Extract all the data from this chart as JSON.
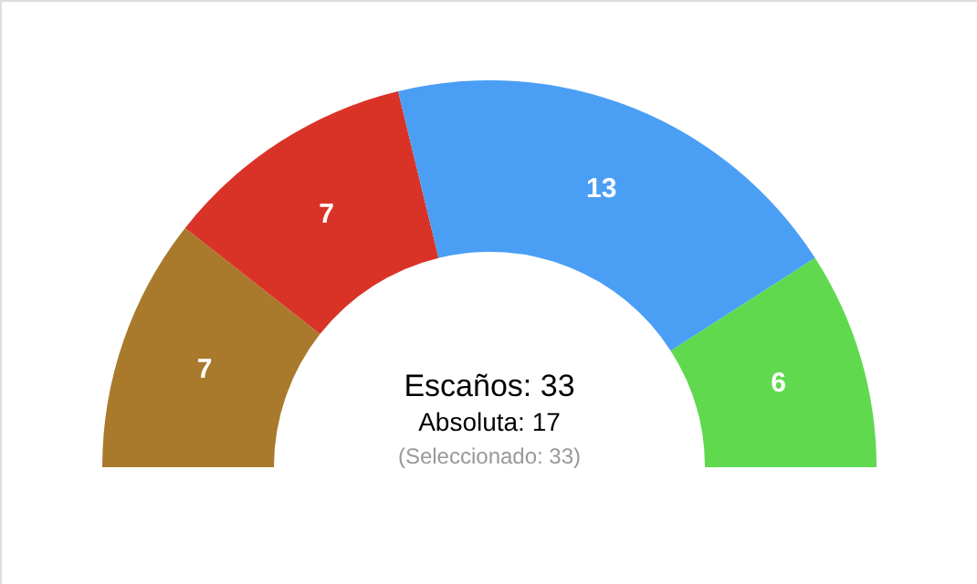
{
  "chart_data": {
    "type": "donut",
    "categories": [
      null,
      null,
      null,
      null
    ],
    "values": [
      7,
      7,
      13,
      6
    ],
    "colors": [
      "#a97a2b",
      "#d93327",
      "#4a9ff5",
      "#60d94f"
    ],
    "data_labels": true,
    "annotations": [
      "Escaños: 33",
      "Absoluta: 17",
      "(Seleccionado: 33)"
    ]
  }
}
